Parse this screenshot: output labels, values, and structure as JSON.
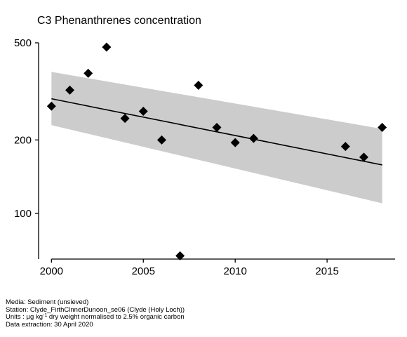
{
  "chart_data": {
    "type": "scatter",
    "title": "C3 Phenanthrenes concentration",
    "xlabel": "",
    "ylabel": "",
    "x_scale": "linear",
    "y_scale": "log",
    "xlim": [
      1999.3,
      2018.7
    ],
    "ylim": [
      65,
      510
    ],
    "x_ticks": [
      2000,
      2005,
      2010,
      2015
    ],
    "y_ticks": [
      100,
      200,
      500
    ],
    "grid": false,
    "legend": "none",
    "points": {
      "x": [
        2000,
        2001,
        2002,
        2003,
        2004,
        2005,
        2006,
        2007,
        2008,
        2009,
        2010,
        2011,
        2016,
        2017,
        2018
      ],
      "y": [
        275,
        320,
        375,
        480,
        245,
        262,
        200,
        67,
        335,
        225,
        195,
        203,
        188,
        170,
        225
      ]
    },
    "trend": {
      "x": [
        2000,
        2018
      ],
      "fit": [
        295,
        158
      ],
      "lower": [
        230,
        110
      ],
      "upper": [
        380,
        222
      ]
    },
    "colors": {
      "points": "#000000",
      "band": "#cccccc",
      "line": "#000000"
    }
  },
  "footer": {
    "media": "Media: Sediment (unsieved)",
    "station": "Station: Clyde_FirthClnnerDunoon_se06 (Clyde (Holy Loch))",
    "units_prefix": "Units : µg kg",
    "units_sup": "-1",
    "units_suffix": " dry weight normalised to 2.5% organic carbon",
    "extraction": "Data extraction: 30 April 2020"
  }
}
